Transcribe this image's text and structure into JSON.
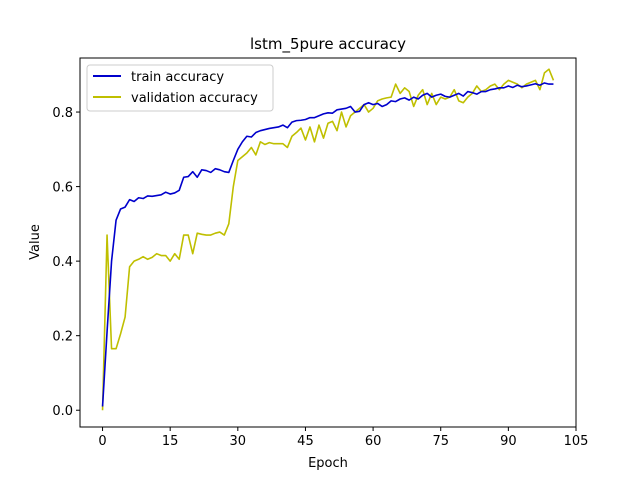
{
  "chart_data": {
    "type": "line",
    "title": "lstm_5pure accuracy",
    "xlabel": "Epoch",
    "ylabel": "Value",
    "xlim": [
      -5,
      105
    ],
    "ylim": [
      -0.045,
      0.945
    ],
    "xticks": [
      0,
      15,
      30,
      45,
      60,
      75,
      90,
      105
    ],
    "yticks": [
      0.0,
      0.2,
      0.4,
      0.6,
      0.8
    ],
    "ytick_labels": [
      "0.0",
      "0.2",
      "0.4",
      "0.6",
      "0.8"
    ],
    "legend_position": "upper-left",
    "series": [
      {
        "name": "train accuracy",
        "color": "#0000cc",
        "x": [
          0,
          1,
          2,
          3,
          4,
          5,
          6,
          7,
          8,
          9,
          10,
          11,
          12,
          13,
          14,
          15,
          16,
          17,
          18,
          19,
          20,
          21,
          22,
          23,
          24,
          25,
          26,
          27,
          28,
          29,
          30,
          31,
          32,
          33,
          34,
          35,
          36,
          37,
          38,
          39,
          40,
          41,
          42,
          43,
          44,
          45,
          46,
          47,
          48,
          49,
          50,
          51,
          52,
          53,
          54,
          55,
          56,
          57,
          58,
          59,
          60,
          61,
          62,
          63,
          64,
          65,
          66,
          67,
          68,
          69,
          70,
          71,
          72,
          73,
          74,
          75,
          76,
          77,
          78,
          79,
          80,
          81,
          82,
          83,
          84,
          85,
          86,
          87,
          88,
          89,
          90,
          91,
          92,
          93,
          94,
          95,
          96,
          97,
          98,
          99,
          100
        ],
        "values": [
          0.01,
          0.21,
          0.4,
          0.51,
          0.54,
          0.545,
          0.565,
          0.56,
          0.57,
          0.568,
          0.575,
          0.574,
          0.576,
          0.578,
          0.585,
          0.58,
          0.583,
          0.59,
          0.625,
          0.627,
          0.64,
          0.625,
          0.645,
          0.643,
          0.638,
          0.648,
          0.645,
          0.64,
          0.638,
          0.67,
          0.7,
          0.72,
          0.735,
          0.733,
          0.745,
          0.75,
          0.753,
          0.756,
          0.758,
          0.76,
          0.765,
          0.758,
          0.773,
          0.777,
          0.778,
          0.78,
          0.785,
          0.785,
          0.79,
          0.795,
          0.798,
          0.797,
          0.806,
          0.808,
          0.81,
          0.815,
          0.8,
          0.802,
          0.82,
          0.825,
          0.82,
          0.823,
          0.815,
          0.82,
          0.83,
          0.828,
          0.835,
          0.838,
          0.832,
          0.84,
          0.835,
          0.845,
          0.85,
          0.84,
          0.845,
          0.848,
          0.842,
          0.84,
          0.845,
          0.85,
          0.843,
          0.855,
          0.852,
          0.848,
          0.855,
          0.855,
          0.86,
          0.862,
          0.865,
          0.865,
          0.87,
          0.866,
          0.872,
          0.868,
          0.87,
          0.873,
          0.876,
          0.872,
          0.878,
          0.875,
          0.875
        ]
      },
      {
        "name": "validation accuracy",
        "color": "#bfbf00",
        "x": [
          0,
          1,
          2,
          3,
          4,
          5,
          6,
          7,
          8,
          9,
          10,
          11,
          12,
          13,
          14,
          15,
          16,
          17,
          18,
          19,
          20,
          21,
          22,
          23,
          24,
          25,
          26,
          27,
          28,
          29,
          30,
          31,
          32,
          33,
          34,
          35,
          36,
          37,
          38,
          39,
          40,
          41,
          42,
          43,
          44,
          45,
          46,
          47,
          48,
          49,
          50,
          51,
          52,
          53,
          54,
          55,
          56,
          57,
          58,
          59,
          60,
          61,
          62,
          63,
          64,
          65,
          66,
          67,
          68,
          69,
          70,
          71,
          72,
          73,
          74,
          75,
          76,
          77,
          78,
          79,
          80,
          81,
          82,
          83,
          84,
          85,
          86,
          87,
          88,
          89,
          90,
          91,
          92,
          93,
          94,
          95,
          96,
          97,
          98,
          99,
          100
        ],
        "values": [
          0.0,
          0.47,
          0.165,
          0.165,
          0.205,
          0.25,
          0.385,
          0.4,
          0.405,
          0.412,
          0.405,
          0.41,
          0.42,
          0.415,
          0.415,
          0.4,
          0.42,
          0.405,
          0.47,
          0.47,
          0.42,
          0.475,
          0.472,
          0.47,
          0.47,
          0.475,
          0.478,
          0.47,
          0.5,
          0.6,
          0.67,
          0.68,
          0.69,
          0.705,
          0.685,
          0.72,
          0.713,
          0.718,
          0.715,
          0.715,
          0.715,
          0.705,
          0.735,
          0.745,
          0.757,
          0.725,
          0.76,
          0.72,
          0.765,
          0.73,
          0.77,
          0.775,
          0.75,
          0.8,
          0.76,
          0.79,
          0.8,
          0.81,
          0.82,
          0.8,
          0.81,
          0.83,
          0.835,
          0.838,
          0.84,
          0.875,
          0.85,
          0.865,
          0.855,
          0.815,
          0.845,
          0.86,
          0.82,
          0.85,
          0.82,
          0.84,
          0.835,
          0.84,
          0.86,
          0.83,
          0.825,
          0.84,
          0.85,
          0.87,
          0.855,
          0.86,
          0.87,
          0.875,
          0.86,
          0.875,
          0.885,
          0.88,
          0.875,
          0.865,
          0.875,
          0.88,
          0.885,
          0.86,
          0.905,
          0.915,
          0.885
        ]
      }
    ]
  }
}
